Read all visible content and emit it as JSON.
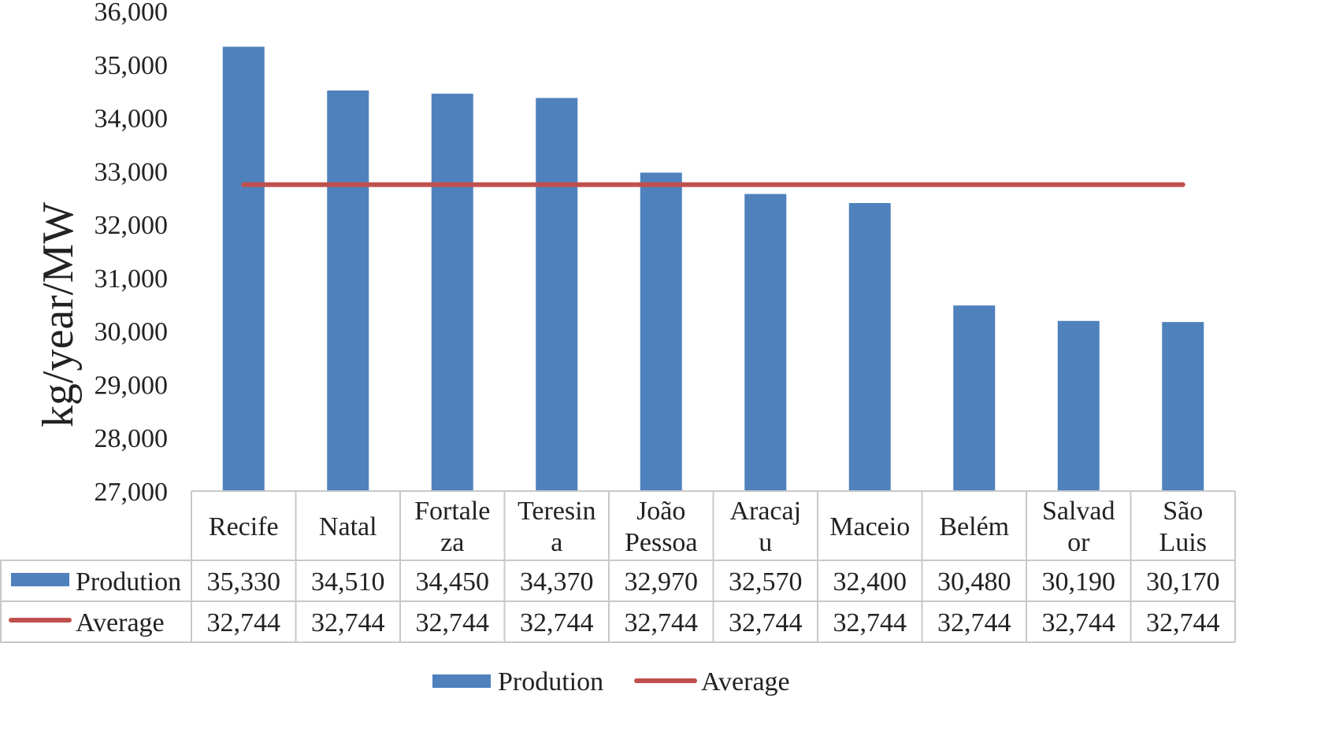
{
  "chart_data": {
    "type": "bar",
    "ylabel": "kg/year/MW",
    "ylim": [
      27000,
      36000
    ],
    "yticks": [
      "27,000",
      "28,000",
      "29,000",
      "30,000",
      "31,000",
      "32,000",
      "33,000",
      "34,000",
      "35,000",
      "36,000"
    ],
    "categories": [
      [
        "Recife"
      ],
      [
        "Natal"
      ],
      [
        "Fortale",
        "za"
      ],
      [
        "Teresin",
        "a"
      ],
      [
        "João",
        "Pessoa"
      ],
      [
        "Aracaj",
        "u"
      ],
      [
        "Maceio"
      ],
      [
        "Belém"
      ],
      [
        "Salvad",
        "or"
      ],
      [
        "São",
        "Luis"
      ]
    ],
    "series": [
      {
        "name": "Prodution",
        "kind": "bar",
        "color": "#4F81BD",
        "values": [
          35330,
          34510,
          34450,
          34370,
          32970,
          32570,
          32400,
          30480,
          30190,
          30170
        ],
        "labels": [
          "35,330",
          "34,510",
          "34,450",
          "34,370",
          "32,970",
          "32,570",
          "32,400",
          "30,480",
          "30,190",
          "30,170"
        ]
      },
      {
        "name": "Average",
        "kind": "line",
        "color": "#C0504D",
        "values": [
          32744,
          32744,
          32744,
          32744,
          32744,
          32744,
          32744,
          32744,
          32744,
          32744
        ],
        "labels": [
          "32,744",
          "32,744",
          "32,744",
          "32,744",
          "32,744",
          "32,744",
          "32,744",
          "32,744",
          "32,744",
          "32,744"
        ]
      }
    ],
    "data_table": true,
    "legend": "bottom",
    "grid": false
  }
}
